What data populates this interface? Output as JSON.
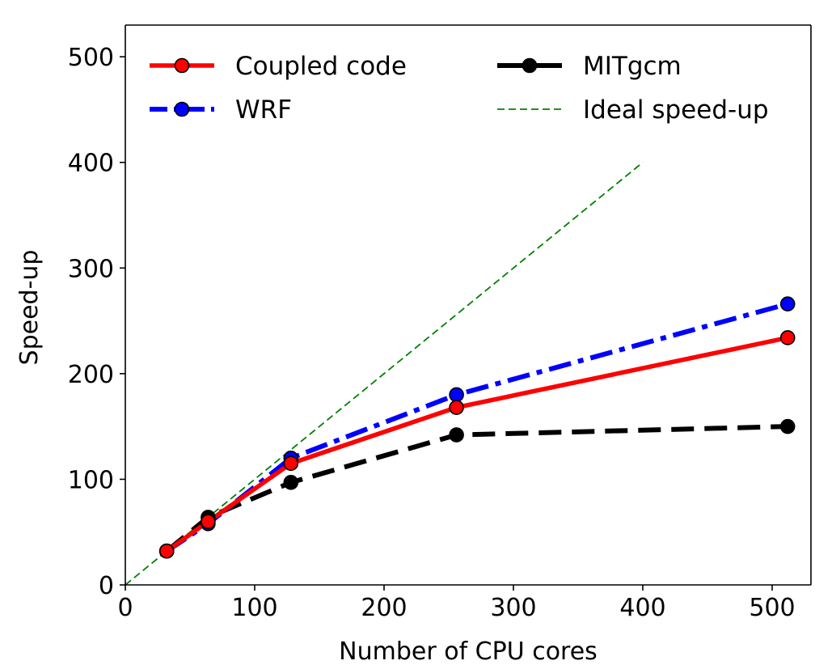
{
  "chart_data": {
    "type": "line",
    "title": "",
    "xlabel": "Number of CPU cores",
    "ylabel": "Speed-up",
    "xlim": [
      0,
      530
    ],
    "ylim": [
      0,
      530
    ],
    "xticks": [
      0,
      100,
      200,
      300,
      400,
      500
    ],
    "yticks": [
      0,
      100,
      200,
      300,
      400,
      500
    ],
    "grid": false,
    "legend_position": "top",
    "series": [
      {
        "name": "Coupled code",
        "color": "#ff0000",
        "marker_color": "#ff0000",
        "linestyle": "solid",
        "x": [
          32,
          64,
          128,
          256,
          512
        ],
        "y": [
          32,
          60,
          115,
          168,
          234
        ]
      },
      {
        "name": "WRF",
        "color": "#0000ff",
        "marker_color": "#0000ff",
        "linestyle": "dashdot",
        "x": [
          32,
          64,
          128,
          256,
          512
        ],
        "y": [
          32,
          58,
          120,
          180,
          266
        ]
      },
      {
        "name": "MITgcm",
        "color": "#000000",
        "marker_color": "#000000",
        "linestyle": "dashed",
        "x": [
          32,
          64,
          128,
          256,
          512
        ],
        "y": [
          32,
          64,
          97,
          142,
          150
        ]
      },
      {
        "name": "Ideal speed-up",
        "color": "#008000",
        "marker_color": null,
        "linestyle": "thin-dashed",
        "x": [
          0,
          400
        ],
        "y": [
          0,
          400
        ]
      }
    ]
  }
}
